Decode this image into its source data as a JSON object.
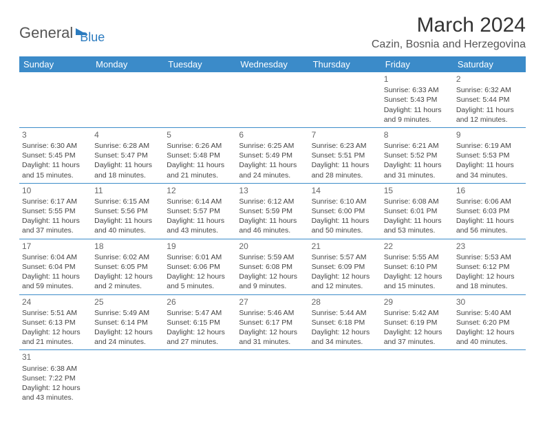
{
  "logo": {
    "part1": "General",
    "part2": "Blue"
  },
  "title": "March 2024",
  "location": "Cazin, Bosnia and Herzegovina",
  "colors": {
    "header_bg": "#3b8bc9",
    "header_text": "#ffffff",
    "rule": "#3b8bc9",
    "brand_blue": "#2b7bbf",
    "text": "#444444"
  },
  "days": [
    "Sunday",
    "Monday",
    "Tuesday",
    "Wednesday",
    "Thursday",
    "Friday",
    "Saturday"
  ],
  "weeks": [
    [
      null,
      null,
      null,
      null,
      null,
      {
        "d": "1",
        "sr": "6:33 AM",
        "ss": "5:43 PM",
        "dl": "11 hours",
        "dl2": "and 9 minutes."
      },
      {
        "d": "2",
        "sr": "6:32 AM",
        "ss": "5:44 PM",
        "dl": "11 hours",
        "dl2": "and 12 minutes."
      }
    ],
    [
      {
        "d": "3",
        "sr": "6:30 AM",
        "ss": "5:45 PM",
        "dl": "11 hours",
        "dl2": "and 15 minutes."
      },
      {
        "d": "4",
        "sr": "6:28 AM",
        "ss": "5:47 PM",
        "dl": "11 hours",
        "dl2": "and 18 minutes."
      },
      {
        "d": "5",
        "sr": "6:26 AM",
        "ss": "5:48 PM",
        "dl": "11 hours",
        "dl2": "and 21 minutes."
      },
      {
        "d": "6",
        "sr": "6:25 AM",
        "ss": "5:49 PM",
        "dl": "11 hours",
        "dl2": "and 24 minutes."
      },
      {
        "d": "7",
        "sr": "6:23 AM",
        "ss": "5:51 PM",
        "dl": "11 hours",
        "dl2": "and 28 minutes."
      },
      {
        "d": "8",
        "sr": "6:21 AM",
        "ss": "5:52 PM",
        "dl": "11 hours",
        "dl2": "and 31 minutes."
      },
      {
        "d": "9",
        "sr": "6:19 AM",
        "ss": "5:53 PM",
        "dl": "11 hours",
        "dl2": "and 34 minutes."
      }
    ],
    [
      {
        "d": "10",
        "sr": "6:17 AM",
        "ss": "5:55 PM",
        "dl": "11 hours",
        "dl2": "and 37 minutes."
      },
      {
        "d": "11",
        "sr": "6:15 AM",
        "ss": "5:56 PM",
        "dl": "11 hours",
        "dl2": "and 40 minutes."
      },
      {
        "d": "12",
        "sr": "6:14 AM",
        "ss": "5:57 PM",
        "dl": "11 hours",
        "dl2": "and 43 minutes."
      },
      {
        "d": "13",
        "sr": "6:12 AM",
        "ss": "5:59 PM",
        "dl": "11 hours",
        "dl2": "and 46 minutes."
      },
      {
        "d": "14",
        "sr": "6:10 AM",
        "ss": "6:00 PM",
        "dl": "11 hours",
        "dl2": "and 50 minutes."
      },
      {
        "d": "15",
        "sr": "6:08 AM",
        "ss": "6:01 PM",
        "dl": "11 hours",
        "dl2": "and 53 minutes."
      },
      {
        "d": "16",
        "sr": "6:06 AM",
        "ss": "6:03 PM",
        "dl": "11 hours",
        "dl2": "and 56 minutes."
      }
    ],
    [
      {
        "d": "17",
        "sr": "6:04 AM",
        "ss": "6:04 PM",
        "dl": "11 hours",
        "dl2": "and 59 minutes."
      },
      {
        "d": "18",
        "sr": "6:02 AM",
        "ss": "6:05 PM",
        "dl": "12 hours",
        "dl2": "and 2 minutes."
      },
      {
        "d": "19",
        "sr": "6:01 AM",
        "ss": "6:06 PM",
        "dl": "12 hours",
        "dl2": "and 5 minutes."
      },
      {
        "d": "20",
        "sr": "5:59 AM",
        "ss": "6:08 PM",
        "dl": "12 hours",
        "dl2": "and 9 minutes."
      },
      {
        "d": "21",
        "sr": "5:57 AM",
        "ss": "6:09 PM",
        "dl": "12 hours",
        "dl2": "and 12 minutes."
      },
      {
        "d": "22",
        "sr": "5:55 AM",
        "ss": "6:10 PM",
        "dl": "12 hours",
        "dl2": "and 15 minutes."
      },
      {
        "d": "23",
        "sr": "5:53 AM",
        "ss": "6:12 PM",
        "dl": "12 hours",
        "dl2": "and 18 minutes."
      }
    ],
    [
      {
        "d": "24",
        "sr": "5:51 AM",
        "ss": "6:13 PM",
        "dl": "12 hours",
        "dl2": "and 21 minutes."
      },
      {
        "d": "25",
        "sr": "5:49 AM",
        "ss": "6:14 PM",
        "dl": "12 hours",
        "dl2": "and 24 minutes."
      },
      {
        "d": "26",
        "sr": "5:47 AM",
        "ss": "6:15 PM",
        "dl": "12 hours",
        "dl2": "and 27 minutes."
      },
      {
        "d": "27",
        "sr": "5:46 AM",
        "ss": "6:17 PM",
        "dl": "12 hours",
        "dl2": "and 31 minutes."
      },
      {
        "d": "28",
        "sr": "5:44 AM",
        "ss": "6:18 PM",
        "dl": "12 hours",
        "dl2": "and 34 minutes."
      },
      {
        "d": "29",
        "sr": "5:42 AM",
        "ss": "6:19 PM",
        "dl": "12 hours",
        "dl2": "and 37 minutes."
      },
      {
        "d": "30",
        "sr": "5:40 AM",
        "ss": "6:20 PM",
        "dl": "12 hours",
        "dl2": "and 40 minutes."
      }
    ],
    [
      {
        "d": "31",
        "sr": "6:38 AM",
        "ss": "7:22 PM",
        "dl": "12 hours",
        "dl2": "and 43 minutes."
      },
      null,
      null,
      null,
      null,
      null,
      null
    ]
  ],
  "labels": {
    "sunrise": "Sunrise: ",
    "sunset": "Sunset: ",
    "daylight": "Daylight: "
  }
}
